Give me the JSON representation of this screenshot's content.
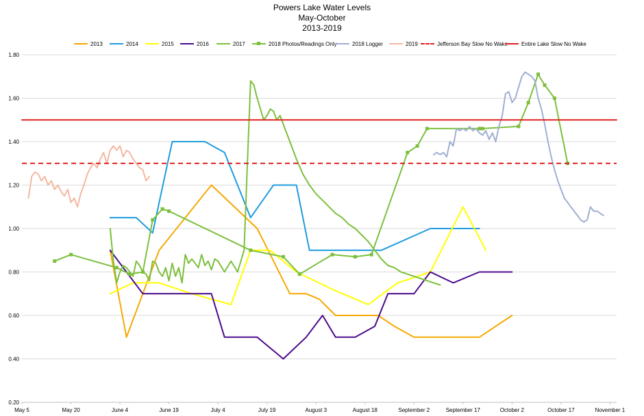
{
  "chart_data": {
    "type": "line",
    "title": "Powers Lake Water Levels",
    "subtitle1": "May-October",
    "subtitle2": "2013-2019",
    "xlabel": "",
    "ylabel": "",
    "ylim": [
      0.2,
      1.8
    ],
    "yticks": [
      "0.20",
      "0.40",
      "0.60",
      "0.80",
      "1.00",
      "1.20",
      "1.40",
      "1.60",
      "1.80"
    ],
    "xlim": [
      0,
      182
    ],
    "xticks": [
      {
        "label": "May 5",
        "day": 0
      },
      {
        "label": "May 20",
        "day": 15
      },
      {
        "label": "June 4",
        "day": 30
      },
      {
        "label": "June 19",
        "day": 45
      },
      {
        "label": "July 4",
        "day": 60
      },
      {
        "label": "July 19",
        "day": 75
      },
      {
        "label": "August 3",
        "day": 90
      },
      {
        "label": "August 18",
        "day": 105
      },
      {
        "label": "September 2",
        "day": 120
      },
      {
        "label": "September 17",
        "day": 135
      },
      {
        "label": "October 2",
        "day": 150
      },
      {
        "label": "October 17",
        "day": 165
      },
      {
        "label": "November 1",
        "day": 180
      }
    ],
    "grid": true,
    "legend_position": "top",
    "series": [
      {
        "name": "2013",
        "color": "#F5A800",
        "style": "solid",
        "points": [
          [
            27,
            0.9
          ],
          [
            32,
            0.5
          ],
          [
            42,
            0.9
          ],
          [
            58,
            1.2
          ],
          [
            72,
            1.0
          ],
          [
            82,
            0.7
          ],
          [
            87,
            0.7
          ],
          [
            91,
            0.675
          ],
          [
            96,
            0.6
          ],
          [
            100,
            0.6
          ],
          [
            104,
            0.6
          ],
          [
            109,
            0.6
          ],
          [
            114,
            0.55
          ],
          [
            120,
            0.5
          ],
          [
            125,
            0.5
          ],
          [
            130,
            0.5
          ],
          [
            140,
            0.5
          ],
          [
            150,
            0.6
          ]
        ]
      },
      {
        "name": "2014",
        "color": "#1F9BDE",
        "style": "solid",
        "points": [
          [
            27,
            1.05
          ],
          [
            35,
            1.05
          ],
          [
            40,
            0.98
          ],
          [
            46,
            1.4
          ],
          [
            56,
            1.4
          ],
          [
            62,
            1.35
          ],
          [
            70,
            1.05
          ],
          [
            77,
            1.2
          ],
          [
            84,
            1.2
          ],
          [
            88,
            0.9
          ],
          [
            98,
            0.9
          ],
          [
            110,
            0.9
          ],
          [
            125,
            1.0
          ],
          [
            140,
            1.0
          ]
        ]
      },
      {
        "name": "2015",
        "color": "#FFFF00",
        "style": "solid",
        "points": [
          [
            27,
            0.7
          ],
          [
            34,
            0.75
          ],
          [
            42,
            0.75
          ],
          [
            52,
            0.7
          ],
          [
            64,
            0.65
          ],
          [
            70,
            0.9
          ],
          [
            76,
            0.9
          ],
          [
            84,
            0.8
          ],
          [
            95,
            0.72
          ],
          [
            106,
            0.65
          ],
          [
            115,
            0.75
          ],
          [
            125,
            0.8
          ],
          [
            135,
            1.1
          ],
          [
            142,
            0.9
          ]
        ]
      },
      {
        "name": "2016",
        "color": "#4B0A8A",
        "style": "solid",
        "points": [
          [
            27,
            0.9
          ],
          [
            32,
            0.8
          ],
          [
            37,
            0.7
          ],
          [
            47,
            0.7
          ],
          [
            58,
            0.7
          ],
          [
            62,
            0.5
          ],
          [
            72,
            0.5
          ],
          [
            80,
            0.4
          ],
          [
            87,
            0.5
          ],
          [
            92,
            0.6
          ],
          [
            96,
            0.5
          ],
          [
            102,
            0.5
          ],
          [
            108,
            0.55
          ],
          [
            112,
            0.7
          ],
          [
            120,
            0.7
          ],
          [
            125,
            0.8
          ],
          [
            132,
            0.75
          ],
          [
            140,
            0.8
          ],
          [
            145,
            0.8
          ],
          [
            150,
            0.8
          ]
        ]
      },
      {
        "name": "2017",
        "color": "#7CBF3C",
        "style": "solid",
        "points": [
          [
            27,
            1.0
          ],
          [
            28,
            0.85
          ],
          [
            29,
            0.75
          ],
          [
            30,
            0.8
          ],
          [
            31,
            0.83
          ],
          [
            32,
            0.82
          ],
          [
            33,
            0.8
          ],
          [
            34,
            0.78
          ],
          [
            35,
            0.85
          ],
          [
            36,
            0.83
          ],
          [
            37,
            0.8
          ],
          [
            38,
            0.79
          ],
          [
            39,
            0.76
          ],
          [
            40,
            0.85
          ],
          [
            41,
            0.84
          ],
          [
            42,
            0.8
          ],
          [
            43,
            0.78
          ],
          [
            44,
            0.82
          ],
          [
            45,
            0.76
          ],
          [
            46,
            0.84
          ],
          [
            47,
            0.78
          ],
          [
            48,
            0.82
          ],
          [
            49,
            0.75
          ],
          [
            50,
            0.88
          ],
          [
            51,
            0.84
          ],
          [
            52,
            0.86
          ],
          [
            53,
            0.84
          ],
          [
            54,
            0.82
          ],
          [
            55,
            0.88
          ],
          [
            56,
            0.83
          ],
          [
            57,
            0.85
          ],
          [
            58,
            0.81
          ],
          [
            59,
            0.86
          ],
          [
            60,
            0.85
          ],
          [
            62,
            0.8
          ],
          [
            64,
            0.85
          ],
          [
            66,
            0.8
          ],
          [
            68,
            0.9
          ],
          [
            69,
            1.3
          ],
          [
            70,
            1.68
          ],
          [
            71,
            1.66
          ],
          [
            72,
            1.6
          ],
          [
            73,
            1.55
          ],
          [
            74,
            1.5
          ],
          [
            75,
            1.52
          ],
          [
            76,
            1.55
          ],
          [
            77,
            1.54
          ],
          [
            78,
            1.5
          ],
          [
            79,
            1.52
          ],
          [
            80,
            1.48
          ],
          [
            82,
            1.4
          ],
          [
            84,
            1.32
          ],
          [
            86,
            1.25
          ],
          [
            88,
            1.2
          ],
          [
            90,
            1.16
          ],
          [
            92,
            1.13
          ],
          [
            94,
            1.1
          ],
          [
            96,
            1.07
          ],
          [
            98,
            1.05
          ],
          [
            100,
            1.02
          ],
          [
            102,
            1.0
          ],
          [
            104,
            0.97
          ],
          [
            106,
            0.94
          ],
          [
            108,
            0.9
          ],
          [
            110,
            0.86
          ],
          [
            112,
            0.83
          ],
          [
            114,
            0.82
          ],
          [
            116,
            0.8
          ],
          [
            118,
            0.79
          ],
          [
            120,
            0.78
          ],
          [
            122,
            0.77
          ],
          [
            124,
            0.76
          ],
          [
            126,
            0.75
          ],
          [
            128,
            0.74
          ]
        ]
      },
      {
        "name": "2018 Photos/Readings Only",
        "color": "#7CBF3C",
        "style": "solid-marker",
        "points": [
          [
            10,
            0.85
          ],
          [
            15,
            0.88
          ],
          [
            29,
            0.82
          ],
          [
            33,
            0.79
          ],
          [
            37,
            0.8
          ],
          [
            40,
            1.04
          ],
          [
            43,
            1.09
          ],
          [
            45,
            1.08
          ],
          [
            70,
            0.9
          ],
          [
            80,
            0.87
          ],
          [
            85,
            0.79
          ],
          [
            95,
            0.88
          ],
          [
            102,
            0.87
          ],
          [
            107,
            0.88
          ],
          [
            118,
            1.35
          ],
          [
            121,
            1.38
          ],
          [
            124,
            1.46
          ],
          [
            140,
            1.46
          ],
          [
            141,
            1.46
          ],
          [
            152,
            1.47
          ],
          [
            155,
            1.58
          ],
          [
            158,
            1.71
          ],
          [
            160,
            1.66
          ],
          [
            163,
            1.6
          ],
          [
            167,
            1.3
          ]
        ]
      },
      {
        "name": "2018 Logger",
        "color": "#A0AED2",
        "style": "solid",
        "points": [
          [
            126,
            1.34
          ],
          [
            127,
            1.35
          ],
          [
            128,
            1.34
          ],
          [
            129,
            1.35
          ],
          [
            130,
            1.33
          ],
          [
            131,
            1.4
          ],
          [
            132,
            1.38
          ],
          [
            133,
            1.46
          ],
          [
            134,
            1.45
          ],
          [
            135,
            1.46
          ],
          [
            136,
            1.45
          ],
          [
            137,
            1.47
          ],
          [
            138,
            1.45
          ],
          [
            139,
            1.46
          ],
          [
            140,
            1.44
          ],
          [
            141,
            1.43
          ],
          [
            142,
            1.45
          ],
          [
            143,
            1.41
          ],
          [
            144,
            1.44
          ],
          [
            145,
            1.4
          ],
          [
            146,
            1.47
          ],
          [
            147,
            1.52
          ],
          [
            148,
            1.62
          ],
          [
            149,
            1.63
          ],
          [
            150,
            1.58
          ],
          [
            151,
            1.6
          ],
          [
            152,
            1.65
          ],
          [
            153,
            1.7
          ],
          [
            154,
            1.72
          ],
          [
            155,
            1.71
          ],
          [
            156,
            1.7
          ],
          [
            157,
            1.68
          ],
          [
            158,
            1.6
          ],
          [
            159,
            1.55
          ],
          [
            160,
            1.48
          ],
          [
            161,
            1.4
          ],
          [
            162,
            1.33
          ],
          [
            163,
            1.27
          ],
          [
            164,
            1.22
          ],
          [
            165,
            1.18
          ],
          [
            166,
            1.14
          ],
          [
            167,
            1.12
          ],
          [
            168,
            1.1
          ],
          [
            169,
            1.08
          ],
          [
            170,
            1.06
          ],
          [
            171,
            1.04
          ],
          [
            172,
            1.03
          ],
          [
            173,
            1.04
          ],
          [
            174,
            1.1
          ],
          [
            175,
            1.08
          ],
          [
            176,
            1.08
          ],
          [
            177,
            1.07
          ],
          [
            178,
            1.06
          ]
        ]
      },
      {
        "name": "2019",
        "color": "#F4B8A0",
        "style": "solid",
        "points": [
          [
            2,
            1.14
          ],
          [
            3,
            1.24
          ],
          [
            4,
            1.26
          ],
          [
            5,
            1.25
          ],
          [
            6,
            1.22
          ],
          [
            7,
            1.24
          ],
          [
            8,
            1.2
          ],
          [
            9,
            1.22
          ],
          [
            10,
            1.18
          ],
          [
            11,
            1.2
          ],
          [
            12,
            1.17
          ],
          [
            13,
            1.15
          ],
          [
            14,
            1.18
          ],
          [
            15,
            1.12
          ],
          [
            16,
            1.14
          ],
          [
            17,
            1.1
          ],
          [
            18,
            1.16
          ],
          [
            19,
            1.2
          ],
          [
            20,
            1.25
          ],
          [
            21,
            1.28
          ],
          [
            22,
            1.3
          ],
          [
            23,
            1.28
          ],
          [
            24,
            1.32
          ],
          [
            25,
            1.35
          ],
          [
            26,
            1.3
          ],
          [
            27,
            1.36
          ],
          [
            28,
            1.38
          ],
          [
            29,
            1.36
          ],
          [
            30,
            1.38
          ],
          [
            31,
            1.33
          ],
          [
            32,
            1.36
          ],
          [
            33,
            1.35
          ],
          [
            34,
            1.32
          ],
          [
            35,
            1.3
          ],
          [
            36,
            1.28
          ],
          [
            37,
            1.27
          ],
          [
            38,
            1.22
          ],
          [
            39,
            1.24
          ]
        ]
      },
      {
        "name": "Jefferson Bay Slow No Wake",
        "color": "#E02020",
        "style": "dashed",
        "points": [
          [
            0,
            1.3
          ],
          [
            182,
            1.3
          ]
        ]
      },
      {
        "name": "Entire Lake Slow No Wake",
        "color": "#E02020",
        "style": "solid",
        "points": [
          [
            0,
            1.5
          ],
          [
            182,
            1.5
          ]
        ]
      }
    ]
  }
}
